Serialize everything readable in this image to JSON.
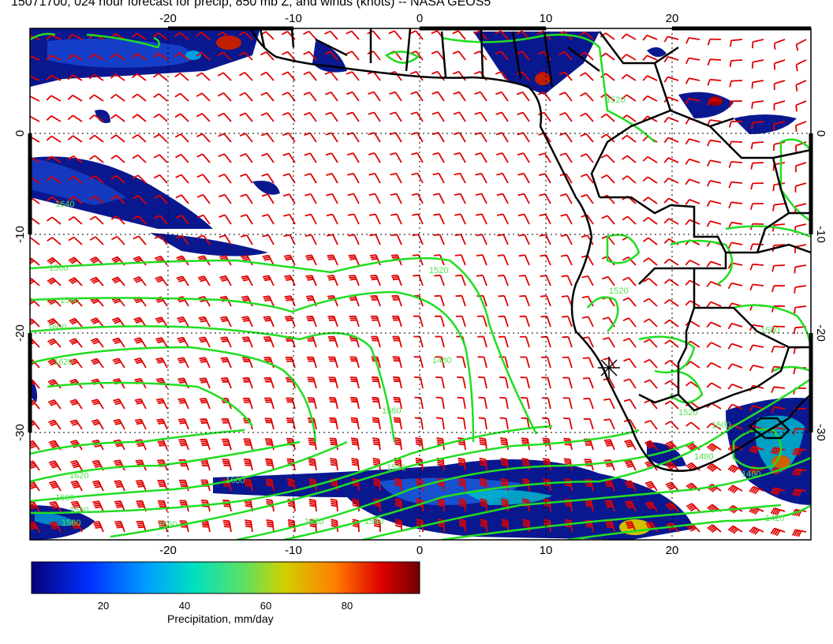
{
  "title": "15071700, 024 hour forecast for precip, 850 mb Z, and winds (knots) -- NASA GEOS5",
  "map": {
    "lon_range": [
      -30,
      30
    ],
    "lat_range": [
      -40,
      10
    ],
    "lon_ticks": [
      "-20",
      "-10",
      "0",
      "10",
      "20"
    ],
    "lat_ticks": [
      "0",
      "-10",
      "-20",
      "-30"
    ],
    "gridlines": "dotted",
    "colors": {
      "wind_barbs": "#e00000",
      "height_contours": "#22dd22",
      "coastlines": "#000000"
    },
    "contour_labels": [
      "1560",
      "1580",
      "1600",
      "1620",
      "1640",
      "1620",
      "1600",
      "1580",
      "1560",
      "1540",
      "1520",
      "1500",
      "1480",
      "1460",
      "1420",
      "1540",
      "1560",
      "1580",
      "1600",
      "1620",
      "1520",
      "1520",
      "1520",
      "1500",
      "1480"
    ],
    "marker_icon": "asterisk-marker-icon"
  },
  "colorbar": {
    "label": "Precipitation, mm/day",
    "ticks": [
      "20",
      "40",
      "60",
      "80"
    ],
    "colors": [
      "#08007a",
      "#0030ff",
      "#00a0ff",
      "#00e0c0",
      "#60e060",
      "#d0d000",
      "#ff8000",
      "#e00000",
      "#700000"
    ]
  }
}
